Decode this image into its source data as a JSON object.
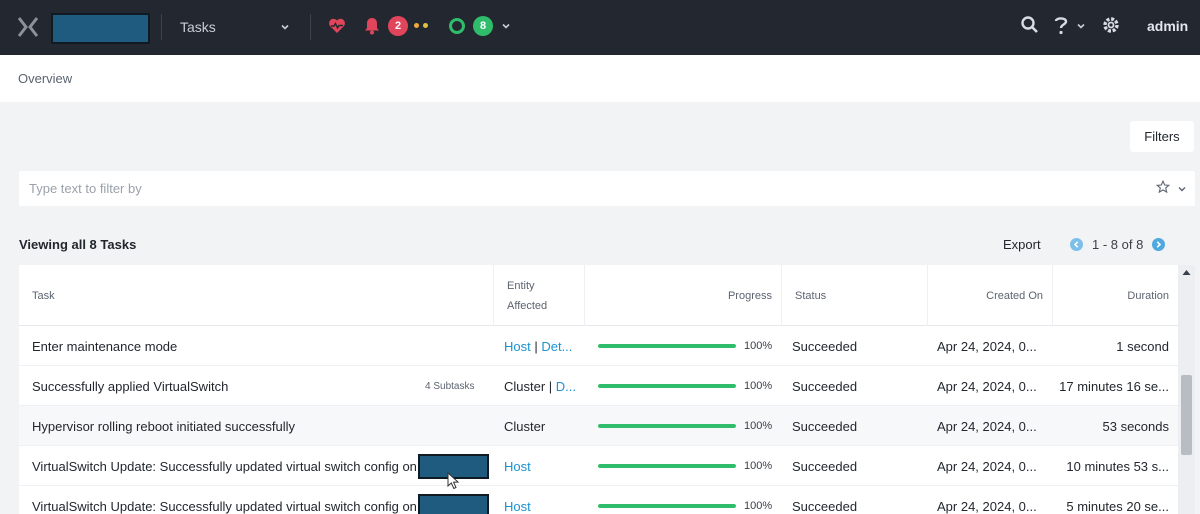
{
  "nav": {
    "menu_label": "Tasks",
    "alert_count": "2",
    "task_count": "8",
    "user_label": "admin"
  },
  "page": {
    "title": "Overview",
    "filters_label": "Filters",
    "filter_placeholder": "Type text to filter by",
    "viewing_label": "Viewing all 8 Tasks",
    "export_label": "Export",
    "pagination": "1 - 8 of 8"
  },
  "table": {
    "columns": {
      "task": "Task",
      "entity_line1": "Entity",
      "entity_line2": "Affected",
      "progress": "Progress",
      "status": "Status",
      "created_on": "Created On",
      "duration": "Duration"
    },
    "rows": [
      {
        "task": "Enter maintenance mode",
        "subtasks": "",
        "entity_a": "Host",
        "entity_sep": " | ",
        "entity_b": "Det...",
        "entity_linked": true,
        "progress": 100,
        "progress_label": "100%",
        "status": "Succeeded",
        "created": "Apr 24, 2024, 0...",
        "duration": "1 second"
      },
      {
        "task": "Successfully applied VirtualSwitch",
        "subtasks": "4 Subtasks",
        "entity_a": "Cluster",
        "entity_sep": " | ",
        "entity_b": "D...",
        "entity_linked": false,
        "progress": 100,
        "progress_label": "100%",
        "status": "Succeeded",
        "created": "Apr 24, 2024, 0...",
        "duration": "17 minutes 16 se..."
      },
      {
        "task": "Hypervisor rolling reboot initiated successfully",
        "subtasks": "",
        "entity_a": "Cluster",
        "entity_sep": "",
        "entity_b": "",
        "entity_linked": false,
        "progress": 100,
        "progress_label": "100%",
        "status": "Succeeded",
        "created": "Apr 24, 2024, 0...",
        "duration": "53 seconds"
      },
      {
        "task": "VirtualSwitch Update: Successfully updated virtual switch config on",
        "subtasks": "",
        "entity_a": "Host",
        "entity_sep": "",
        "entity_b": "",
        "entity_linked": true,
        "progress": 100,
        "progress_label": "100%",
        "status": "Succeeded",
        "created": "Apr 24, 2024, 0...",
        "duration": "10 minutes 53 s..."
      },
      {
        "task": "VirtualSwitch Update: Successfully updated virtual switch config on",
        "subtasks": "",
        "entity_a": "Host",
        "entity_sep": "",
        "entity_b": "",
        "entity_linked": true,
        "progress": 100,
        "progress_label": "100%",
        "status": "Succeeded",
        "created": "Apr 24, 2024, 0...",
        "duration": "5 minutes 20 se..."
      }
    ]
  },
  "colors": {
    "nav_bg": "#23272f",
    "accent_link": "#1b93d1",
    "success": "#2fbd6b",
    "alert": "#e0455b",
    "redacted": "#1f5b7e"
  },
  "icons": [
    "x-logo-icon",
    "chevron-down-icon",
    "heart-pulse-icon",
    "bell-icon",
    "status-ring-icon",
    "search-icon",
    "help-icon",
    "gear-icon",
    "star-icon",
    "chevron-left-icon",
    "chevron-right-icon",
    "scroll-up-icon",
    "mouse-cursor-icon"
  ]
}
